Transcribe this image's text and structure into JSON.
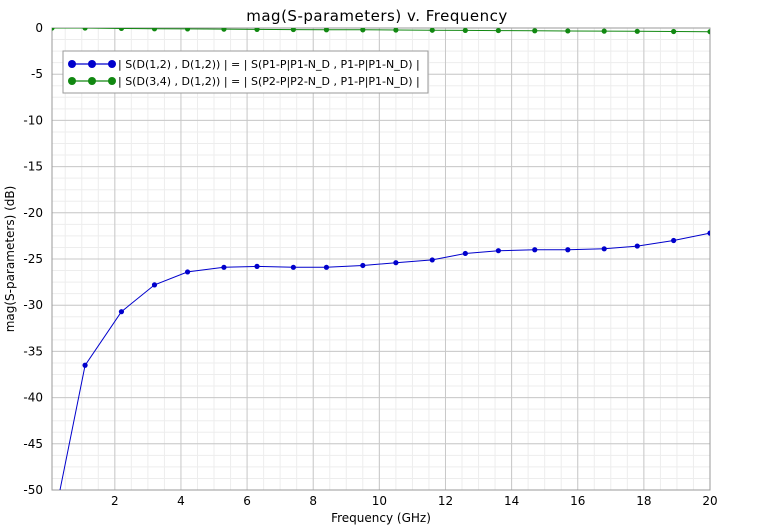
{
  "chart_data": {
    "type": "line",
    "title": "mag(S-parameters) v. Frequency",
    "xlabel": "Frequency (GHz)",
    "ylabel": "mag(S-parameters) (dB)",
    "xlim": [
      0.1,
      20
    ],
    "ylim": [
      -50,
      0
    ],
    "x_ticks": [
      2,
      4,
      6,
      8,
      10,
      12,
      14,
      16,
      18,
      20
    ],
    "y_ticks": [
      0,
      -5,
      -10,
      -15,
      -20,
      -25,
      -30,
      -35,
      -40,
      -45,
      -50
    ],
    "grid": true,
    "legend_position": "top-left",
    "series": [
      {
        "name": "| S(D(1,2) , D(1,2)) | = | S(P1-P|P1-N_D , P1-P|P1-N_D) |",
        "color": "#0000cc",
        "x": [
          0.1,
          1.1,
          2.2,
          3.2,
          4.2,
          5.3,
          6.3,
          7.4,
          8.4,
          9.5,
          10.5,
          11.6,
          12.6,
          13.6,
          14.7,
          15.7,
          16.8,
          17.8,
          18.9,
          20
        ],
        "y": [
          -54.3,
          -36.5,
          -30.7,
          -27.8,
          -26.4,
          -25.9,
          -25.8,
          -25.9,
          -25.9,
          -25.7,
          -25.4,
          -25.1,
          -24.4,
          -24.1,
          -24.0,
          -24.0,
          -23.9,
          -23.6,
          -23.0,
          -22.2
        ]
      },
      {
        "name": "| S(D(3,4) , D(1,2)) | = | S(P2-P|P2-N_D , P1-P|P1-N_D) |",
        "color": "#118811",
        "x": [
          0.1,
          1.1,
          2.2,
          3.2,
          4.2,
          5.3,
          6.3,
          7.4,
          8.4,
          9.5,
          10.5,
          11.6,
          12.6,
          13.6,
          14.7,
          15.7,
          16.8,
          17.8,
          18.9,
          20
        ],
        "y": [
          0.0,
          0.0,
          -0.05,
          -0.08,
          -0.1,
          -0.12,
          -0.15,
          -0.17,
          -0.19,
          -0.2,
          -0.22,
          -0.24,
          -0.26,
          -0.28,
          -0.3,
          -0.32,
          -0.34,
          -0.36,
          -0.38,
          -0.4
        ]
      }
    ]
  }
}
